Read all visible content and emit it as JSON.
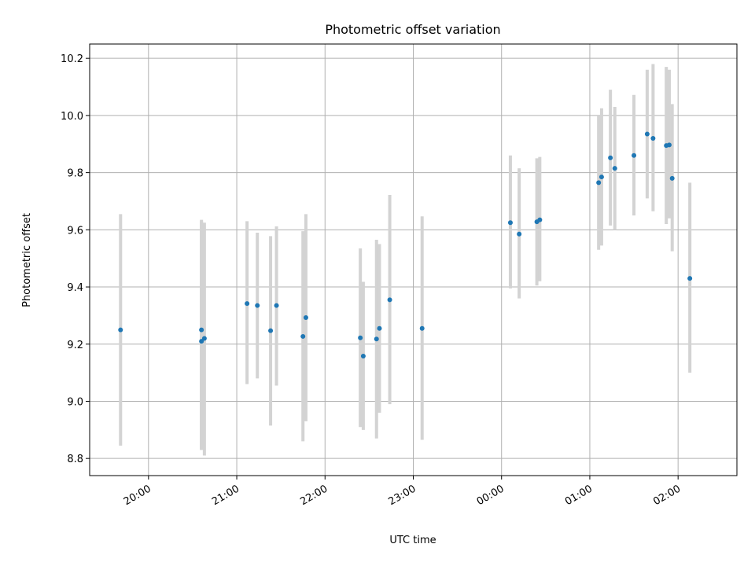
{
  "chart_data": {
    "type": "scatter",
    "title": "Photometric offset variation",
    "xlabel": "UTC time",
    "ylabel": "Photometric offset",
    "grid": true,
    "x_axis": {
      "kind": "time",
      "range": [
        "19:20",
        "02:40"
      ],
      "ticks": [
        "20:00",
        "21:00",
        "22:00",
        "23:00",
        "00:00",
        "01:00",
        "02:00"
      ]
    },
    "y_axis": {
      "range": [
        8.74,
        10.25
      ],
      "ticks": [
        8.8,
        9.0,
        9.2,
        9.4,
        9.6,
        9.8,
        10.0,
        10.2
      ],
      "tick_labels": [
        "8.8",
        "9.0",
        "9.2",
        "9.4",
        "9.6",
        "9.8",
        "10.0",
        "10.2"
      ]
    },
    "colors": {
      "point": "#1f77b4",
      "errorbar": "#d3d3d3"
    },
    "points": [
      {
        "t": "19:41",
        "y": 9.25,
        "lo": 8.845,
        "hi": 9.655
      },
      {
        "t": "20:36",
        "y": 9.25,
        "lo": 8.83,
        "hi": 9.635
      },
      {
        "t": "20:36",
        "y": 9.21,
        "lo": 8.83,
        "hi": 9.63
      },
      {
        "t": "20:38",
        "y": 9.22,
        "lo": 8.81,
        "hi": 9.625
      },
      {
        "t": "21:07",
        "y": 9.342,
        "lo": 9.06,
        "hi": 9.63
      },
      {
        "t": "21:14",
        "y": 9.335,
        "lo": 9.08,
        "hi": 9.59
      },
      {
        "t": "21:23",
        "y": 9.247,
        "lo": 8.915,
        "hi": 9.578
      },
      {
        "t": "21:27",
        "y": 9.335,
        "lo": 9.055,
        "hi": 9.612
      },
      {
        "t": "21:45",
        "y": 9.227,
        "lo": 8.86,
        "hi": 9.595
      },
      {
        "t": "21:47",
        "y": 9.293,
        "lo": 8.93,
        "hi": 9.655
      },
      {
        "t": "22:24",
        "y": 9.222,
        "lo": 8.91,
        "hi": 9.535
      },
      {
        "t": "22:26",
        "y": 9.158,
        "lo": 8.9,
        "hi": 9.418
      },
      {
        "t": "22:35",
        "y": 9.218,
        "lo": 8.87,
        "hi": 9.565
      },
      {
        "t": "22:37",
        "y": 9.255,
        "lo": 8.96,
        "hi": 9.55
      },
      {
        "t": "22:44",
        "y": 9.355,
        "lo": 8.99,
        "hi": 9.722
      },
      {
        "t": "23:06",
        "y": 9.255,
        "lo": 8.865,
        "hi": 9.647
      },
      {
        "t": "00:06",
        "y": 9.625,
        "lo": 9.395,
        "hi": 9.86
      },
      {
        "t": "00:12",
        "y": 9.585,
        "lo": 9.36,
        "hi": 9.815
      },
      {
        "t": "00:24",
        "y": 9.628,
        "lo": 9.405,
        "hi": 9.85
      },
      {
        "t": "00:26",
        "y": 9.635,
        "lo": 9.42,
        "hi": 9.855
      },
      {
        "t": "01:06",
        "y": 9.765,
        "lo": 9.53,
        "hi": 10.0
      },
      {
        "t": "01:08",
        "y": 9.785,
        "lo": 9.545,
        "hi": 10.025
      },
      {
        "t": "01:14",
        "y": 9.852,
        "lo": 9.615,
        "hi": 10.09
      },
      {
        "t": "01:17",
        "y": 9.815,
        "lo": 9.6,
        "hi": 10.03
      },
      {
        "t": "01:30",
        "y": 9.86,
        "lo": 9.65,
        "hi": 10.072
      },
      {
        "t": "01:39",
        "y": 9.935,
        "lo": 9.71,
        "hi": 10.16
      },
      {
        "t": "01:43",
        "y": 9.92,
        "lo": 9.665,
        "hi": 10.18
      },
      {
        "t": "01:52",
        "y": 9.895,
        "lo": 9.62,
        "hi": 10.17
      },
      {
        "t": "01:54",
        "y": 9.897,
        "lo": 9.64,
        "hi": 10.16
      },
      {
        "t": "01:56",
        "y": 9.78,
        "lo": 9.525,
        "hi": 10.04
      },
      {
        "t": "02:08",
        "y": 9.43,
        "lo": 9.1,
        "hi": 9.765
      }
    ]
  }
}
